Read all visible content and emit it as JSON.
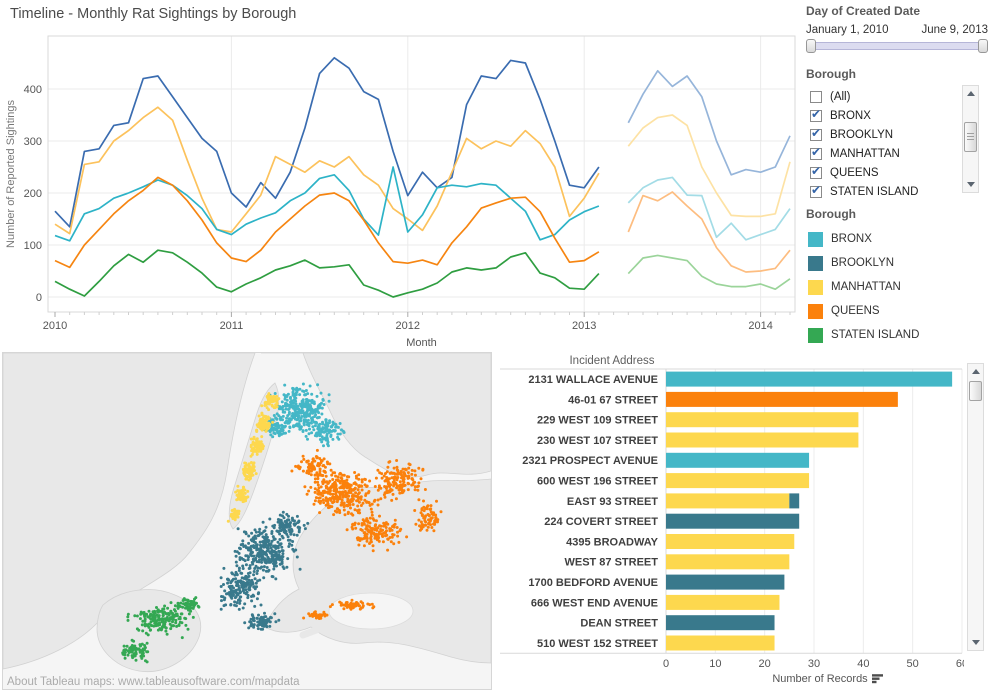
{
  "title": "Timeline - Monthly Rat Sightings by Borough",
  "palette": {
    "BRONX": "#44b7c7",
    "BROOKLYN": "#39798c",
    "MANHATTAN": "#fdd84e",
    "QUEENS": "#fb810c",
    "STATEN ISLAND": "#34a853"
  },
  "filters": {
    "date": {
      "label": "Day of Created Date",
      "start": "January 1, 2010",
      "end": "June 9, 2013",
      "track_color": "#dcdcf0"
    },
    "borough": {
      "label": "Borough",
      "options": [
        {
          "label": "(All)",
          "checked": false
        },
        {
          "label": "BRONX",
          "checked": true
        },
        {
          "label": "BROOKLYN",
          "checked": true
        },
        {
          "label": "MANHATTAN",
          "checked": true
        },
        {
          "label": "QUEENS",
          "checked": true
        },
        {
          "label": "STATEN ISLAND",
          "checked": true
        }
      ]
    }
  },
  "legend": {
    "title": "Borough",
    "items": [
      {
        "label": "BRONX",
        "color": "#44b7c7"
      },
      {
        "label": "BROOKLYN",
        "color": "#39798c"
      },
      {
        "label": "MANHATTAN",
        "color": "#fdd84e"
      },
      {
        "label": "QUEENS",
        "color": "#fb810c"
      },
      {
        "label": "STATEN ISLAND",
        "color": "#34a853"
      }
    ]
  },
  "icons": {
    "sort": "sort-descending-bars-icon",
    "scroll_up": "triangle-up-icon",
    "scroll_down": "triangle-down-icon"
  },
  "map": {
    "attribution": "About Tableau maps: www.tableausoftware.com/mapdata",
    "clusters": {
      "BRONX": [
        [
          298,
          56,
          36,
          30,
          300
        ],
        [
          322,
          78,
          24,
          18,
          110
        ],
        [
          272,
          74,
          16,
          14,
          70
        ]
      ],
      "MANHATTAN": [
        [
          268,
          48,
          12,
          11,
          70
        ],
        [
          261,
          70,
          10,
          13,
          80
        ],
        [
          253,
          94,
          9,
          13,
          80
        ],
        [
          246,
          118,
          9,
          12,
          70
        ],
        [
          238,
          142,
          8,
          11,
          55
        ],
        [
          231,
          162,
          7,
          9,
          40
        ]
      ],
      "QUEENS": [
        [
          340,
          140,
          42,
          32,
          320
        ],
        [
          395,
          128,
          32,
          26,
          150
        ],
        [
          372,
          180,
          36,
          22,
          140
        ],
        [
          310,
          112,
          22,
          16,
          80
        ],
        [
          425,
          165,
          18,
          22,
          70
        ],
        [
          350,
          252,
          26,
          6,
          55
        ],
        [
          315,
          262,
          16,
          5,
          30
        ]
      ],
      "BROOKLYN": [
        [
          262,
          198,
          38,
          32,
          300
        ],
        [
          237,
          234,
          28,
          26,
          170
        ],
        [
          286,
          172,
          22,
          16,
          90
        ],
        [
          258,
          268,
          20,
          13,
          70
        ]
      ],
      "STATEN ISLAND": [
        [
          158,
          266,
          36,
          20,
          170
        ],
        [
          132,
          298,
          20,
          14,
          70
        ],
        [
          186,
          252,
          18,
          11,
          55
        ]
      ]
    }
  },
  "chart_data": [
    {
      "id": "timeline",
      "type": "line",
      "title": "Timeline - Monthly Rat Sightings by Borough",
      "xlabel": "Month",
      "ylabel": "Number of Reported Sightings",
      "months_start": "2010-01",
      "months_end": "2014-03",
      "x_ticks": [
        "2010",
        "2011",
        "2012",
        "2013",
        "2014"
      ],
      "y_ticks": [
        0,
        100,
        200,
        300,
        400
      ],
      "ylim": [
        0,
        470
      ],
      "grid": true,
      "gap_month_index": 38,
      "faded_after_note": "values from index 39 on are drawn faded (outside June 9, 2013 date filter)",
      "series": [
        {
          "name": "BROOKLYN",
          "color": "#3a6cb0",
          "faded_color": "#96b5da",
          "values": [
            165,
            135,
            280,
            285,
            330,
            335,
            420,
            425,
            385,
            345,
            305,
            280,
            200,
            173,
            220,
            190,
            240,
            325,
            430,
            460,
            440,
            395,
            380,
            280,
            195,
            240,
            210,
            230,
            370,
            425,
            420,
            455,
            450,
            380,
            300,
            215,
            210,
            250,
            null,
            335,
            390,
            435,
            405,
            425,
            385,
            300,
            235,
            245,
            240,
            250,
            310
          ]
        },
        {
          "name": "MANHATTAN",
          "color": "#fcc25c",
          "faded_color": "#fde2a4",
          "values": [
            140,
            122,
            255,
            260,
            300,
            320,
            345,
            365,
            340,
            263,
            190,
            130,
            125,
            160,
            196,
            270,
            255,
            240,
            262,
            250,
            270,
            235,
            215,
            170,
            150,
            128,
            175,
            240,
            305,
            285,
            300,
            290,
            320,
            295,
            250,
            155,
            190,
            238,
            null,
            290,
            325,
            345,
            350,
            330,
            250,
            200,
            157,
            155,
            155,
            160,
            260
          ]
        },
        {
          "name": "BRONX",
          "color": "#2db3c7",
          "faded_color": "#a3dce6",
          "values": [
            118,
            108,
            160,
            170,
            190,
            200,
            212,
            225,
            215,
            195,
            170,
            130,
            120,
            140,
            152,
            162,
            185,
            200,
            228,
            235,
            205,
            150,
            119,
            250,
            125,
            158,
            210,
            215,
            212,
            218,
            215,
            190,
            165,
            110,
            120,
            148,
            164,
            175,
            null,
            181,
            210,
            225,
            230,
            196,
            195,
            115,
            142,
            110,
            120,
            130,
            170
          ]
        },
        {
          "name": "QUEENS",
          "color": "#f68511",
          "faded_color": "#fdbd80",
          "values": [
            70,
            57,
            100,
            130,
            160,
            185,
            205,
            230,
            215,
            185,
            148,
            104,
            75,
            68,
            90,
            125,
            150,
            175,
            196,
            200,
            185,
            148,
            104,
            68,
            65,
            71,
            62,
            104,
            135,
            171,
            181,
            190,
            192,
            164,
            113,
            67,
            70,
            87,
            null,
            125,
            195,
            185,
            202,
            175,
            150,
            95,
            60,
            48,
            50,
            55,
            90
          ]
        },
        {
          "name": "STATEN ISLAND",
          "color": "#2f9e41",
          "faded_color": "#9bd49a",
          "values": [
            30,
            15,
            2,
            30,
            60,
            82,
            67,
            90,
            85,
            67,
            46,
            19,
            10,
            25,
            37,
            52,
            60,
            71,
            56,
            58,
            62,
            23,
            13,
            0,
            8,
            15,
            27,
            48,
            56,
            52,
            56,
            77,
            85,
            46,
            37,
            17,
            15,
            45,
            null,
            45,
            75,
            80,
            75,
            70,
            40,
            25,
            20,
            20,
            25,
            15,
            35
          ]
        }
      ]
    },
    {
      "id": "top-addresses",
      "type": "bar",
      "title": "Incident Address",
      "xlabel": "Number of Records",
      "xlim": [
        0,
        60
      ],
      "x_ticks": [
        0,
        10,
        20,
        30,
        40,
        50,
        60
      ],
      "sort": "descending",
      "rows": [
        {
          "label": "2131 WALLACE AVENUE",
          "segments": [
            {
              "borough": "BRONX",
              "value": 58
            }
          ]
        },
        {
          "label": "46-01 67 STREET",
          "segments": [
            {
              "borough": "QUEENS",
              "value": 47
            }
          ]
        },
        {
          "label": "229 WEST 109 STREET",
          "segments": [
            {
              "borough": "MANHATTAN",
              "value": 39
            }
          ]
        },
        {
          "label": "230 WEST 107 STREET",
          "segments": [
            {
              "borough": "MANHATTAN",
              "value": 39
            }
          ]
        },
        {
          "label": "2321 PROSPECT AVENUE",
          "segments": [
            {
              "borough": "BRONX",
              "value": 29
            }
          ]
        },
        {
          "label": "600 WEST 196 STREET",
          "segments": [
            {
              "borough": "MANHATTAN",
              "value": 29
            }
          ]
        },
        {
          "label": "EAST 93 STREET",
          "segments": [
            {
              "borough": "MANHATTAN",
              "value": 25
            },
            {
              "borough": "BROOKLYN",
              "value": 2
            }
          ]
        },
        {
          "label": "224 COVERT STREET",
          "segments": [
            {
              "borough": "BROOKLYN",
              "value": 27
            }
          ]
        },
        {
          "label": "4395 BROADWAY",
          "segments": [
            {
              "borough": "MANHATTAN",
              "value": 26
            }
          ]
        },
        {
          "label": "WEST 87 STREET",
          "segments": [
            {
              "borough": "MANHATTAN",
              "value": 25
            }
          ]
        },
        {
          "label": "1700 BEDFORD AVENUE",
          "segments": [
            {
              "borough": "BROOKLYN",
              "value": 24
            }
          ]
        },
        {
          "label": "666 WEST END AVENUE",
          "segments": [
            {
              "borough": "MANHATTAN",
              "value": 23
            }
          ]
        },
        {
          "label": "DEAN STREET",
          "segments": [
            {
              "borough": "BROOKLYN",
              "value": 22
            }
          ]
        },
        {
          "label": "510 WEST 152 STREET",
          "segments": [
            {
              "borough": "MANHATTAN",
              "value": 22
            }
          ]
        }
      ]
    }
  ]
}
